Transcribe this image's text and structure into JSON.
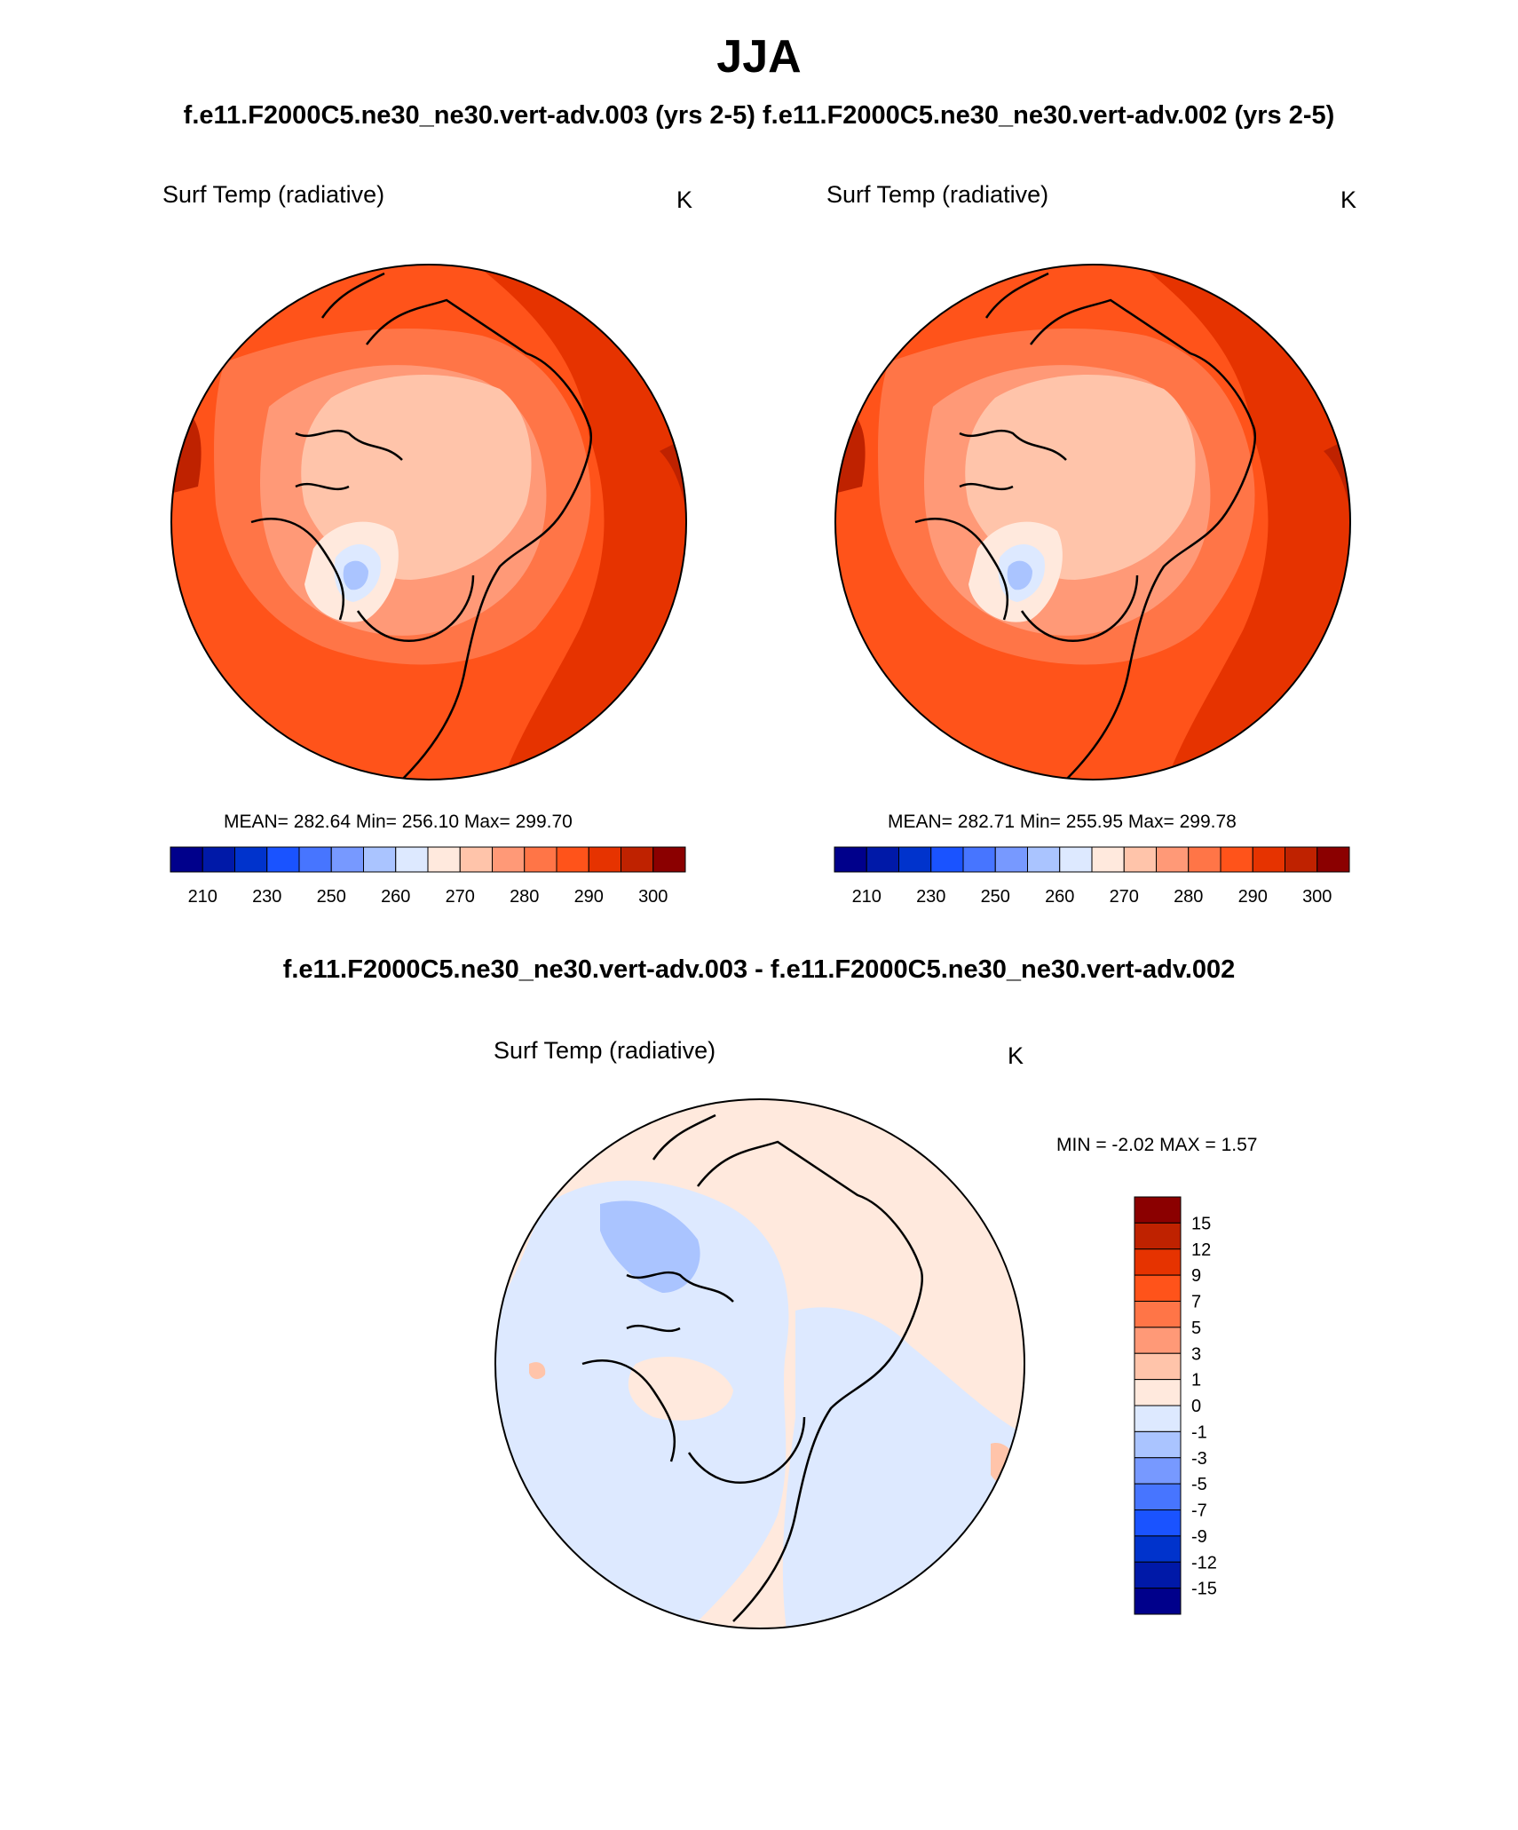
{
  "header": {
    "season": "JJA",
    "runs_line": "f.e11.F2000C5.ne30_ne30.vert-adv.003 (yrs 2-5)  f.e11.F2000C5.ne30_ne30.vert-adv.002 (yrs 2-5)",
    "diff_line": "f.e11.F2000C5.ne30_ne30.vert-adv.003 - f.e11.F2000C5.ne30_ne30.vert-adv.002"
  },
  "panels": [
    {
      "title": "Surf Temp (radiative)",
      "units": "K",
      "stats": "MEAN= 282.64  Min= 256.10  Max= 299.70"
    },
    {
      "title": "Surf Temp (radiative)",
      "units": "K",
      "stats": "MEAN= 282.71  Min= 255.95  Max= 299.78"
    }
  ],
  "diff_panel": {
    "title": "Surf Temp (radiative)",
    "units": "K",
    "stats": "MIN =  -2.02 MAX =   1.57"
  },
  "colorbar_abs": {
    "colors": [
      "#00008b",
      "#0019a8",
      "#0033cc",
      "#1a53ff",
      "#4775ff",
      "#7799ff",
      "#aac4ff",
      "#dde9ff",
      "#ffe9dd",
      "#ffc4aa",
      "#ff9977",
      "#ff7547",
      "#ff531a",
      "#e63300",
      "#bf2200",
      "#8b0000"
    ],
    "tick_labels": [
      "210",
      "230",
      "250",
      "260",
      "270",
      "280",
      "290",
      "300"
    ]
  },
  "colorbar_diff": {
    "colors": [
      "#8b0000",
      "#bf2200",
      "#e63300",
      "#ff531a",
      "#ff7547",
      "#ff9977",
      "#ffc4aa",
      "#ffe9dd",
      "#dde9ff",
      "#aac4ff",
      "#7799ff",
      "#4775ff",
      "#1a53ff",
      "#0033cc",
      "#0019a8",
      "#00008b"
    ],
    "tick_labels": [
      "15",
      "12",
      "9",
      "7",
      "5",
      "3",
      "1",
      "0",
      "-1",
      "-3",
      "-5",
      "-7",
      "-9",
      "-12",
      "-15"
    ]
  }
}
